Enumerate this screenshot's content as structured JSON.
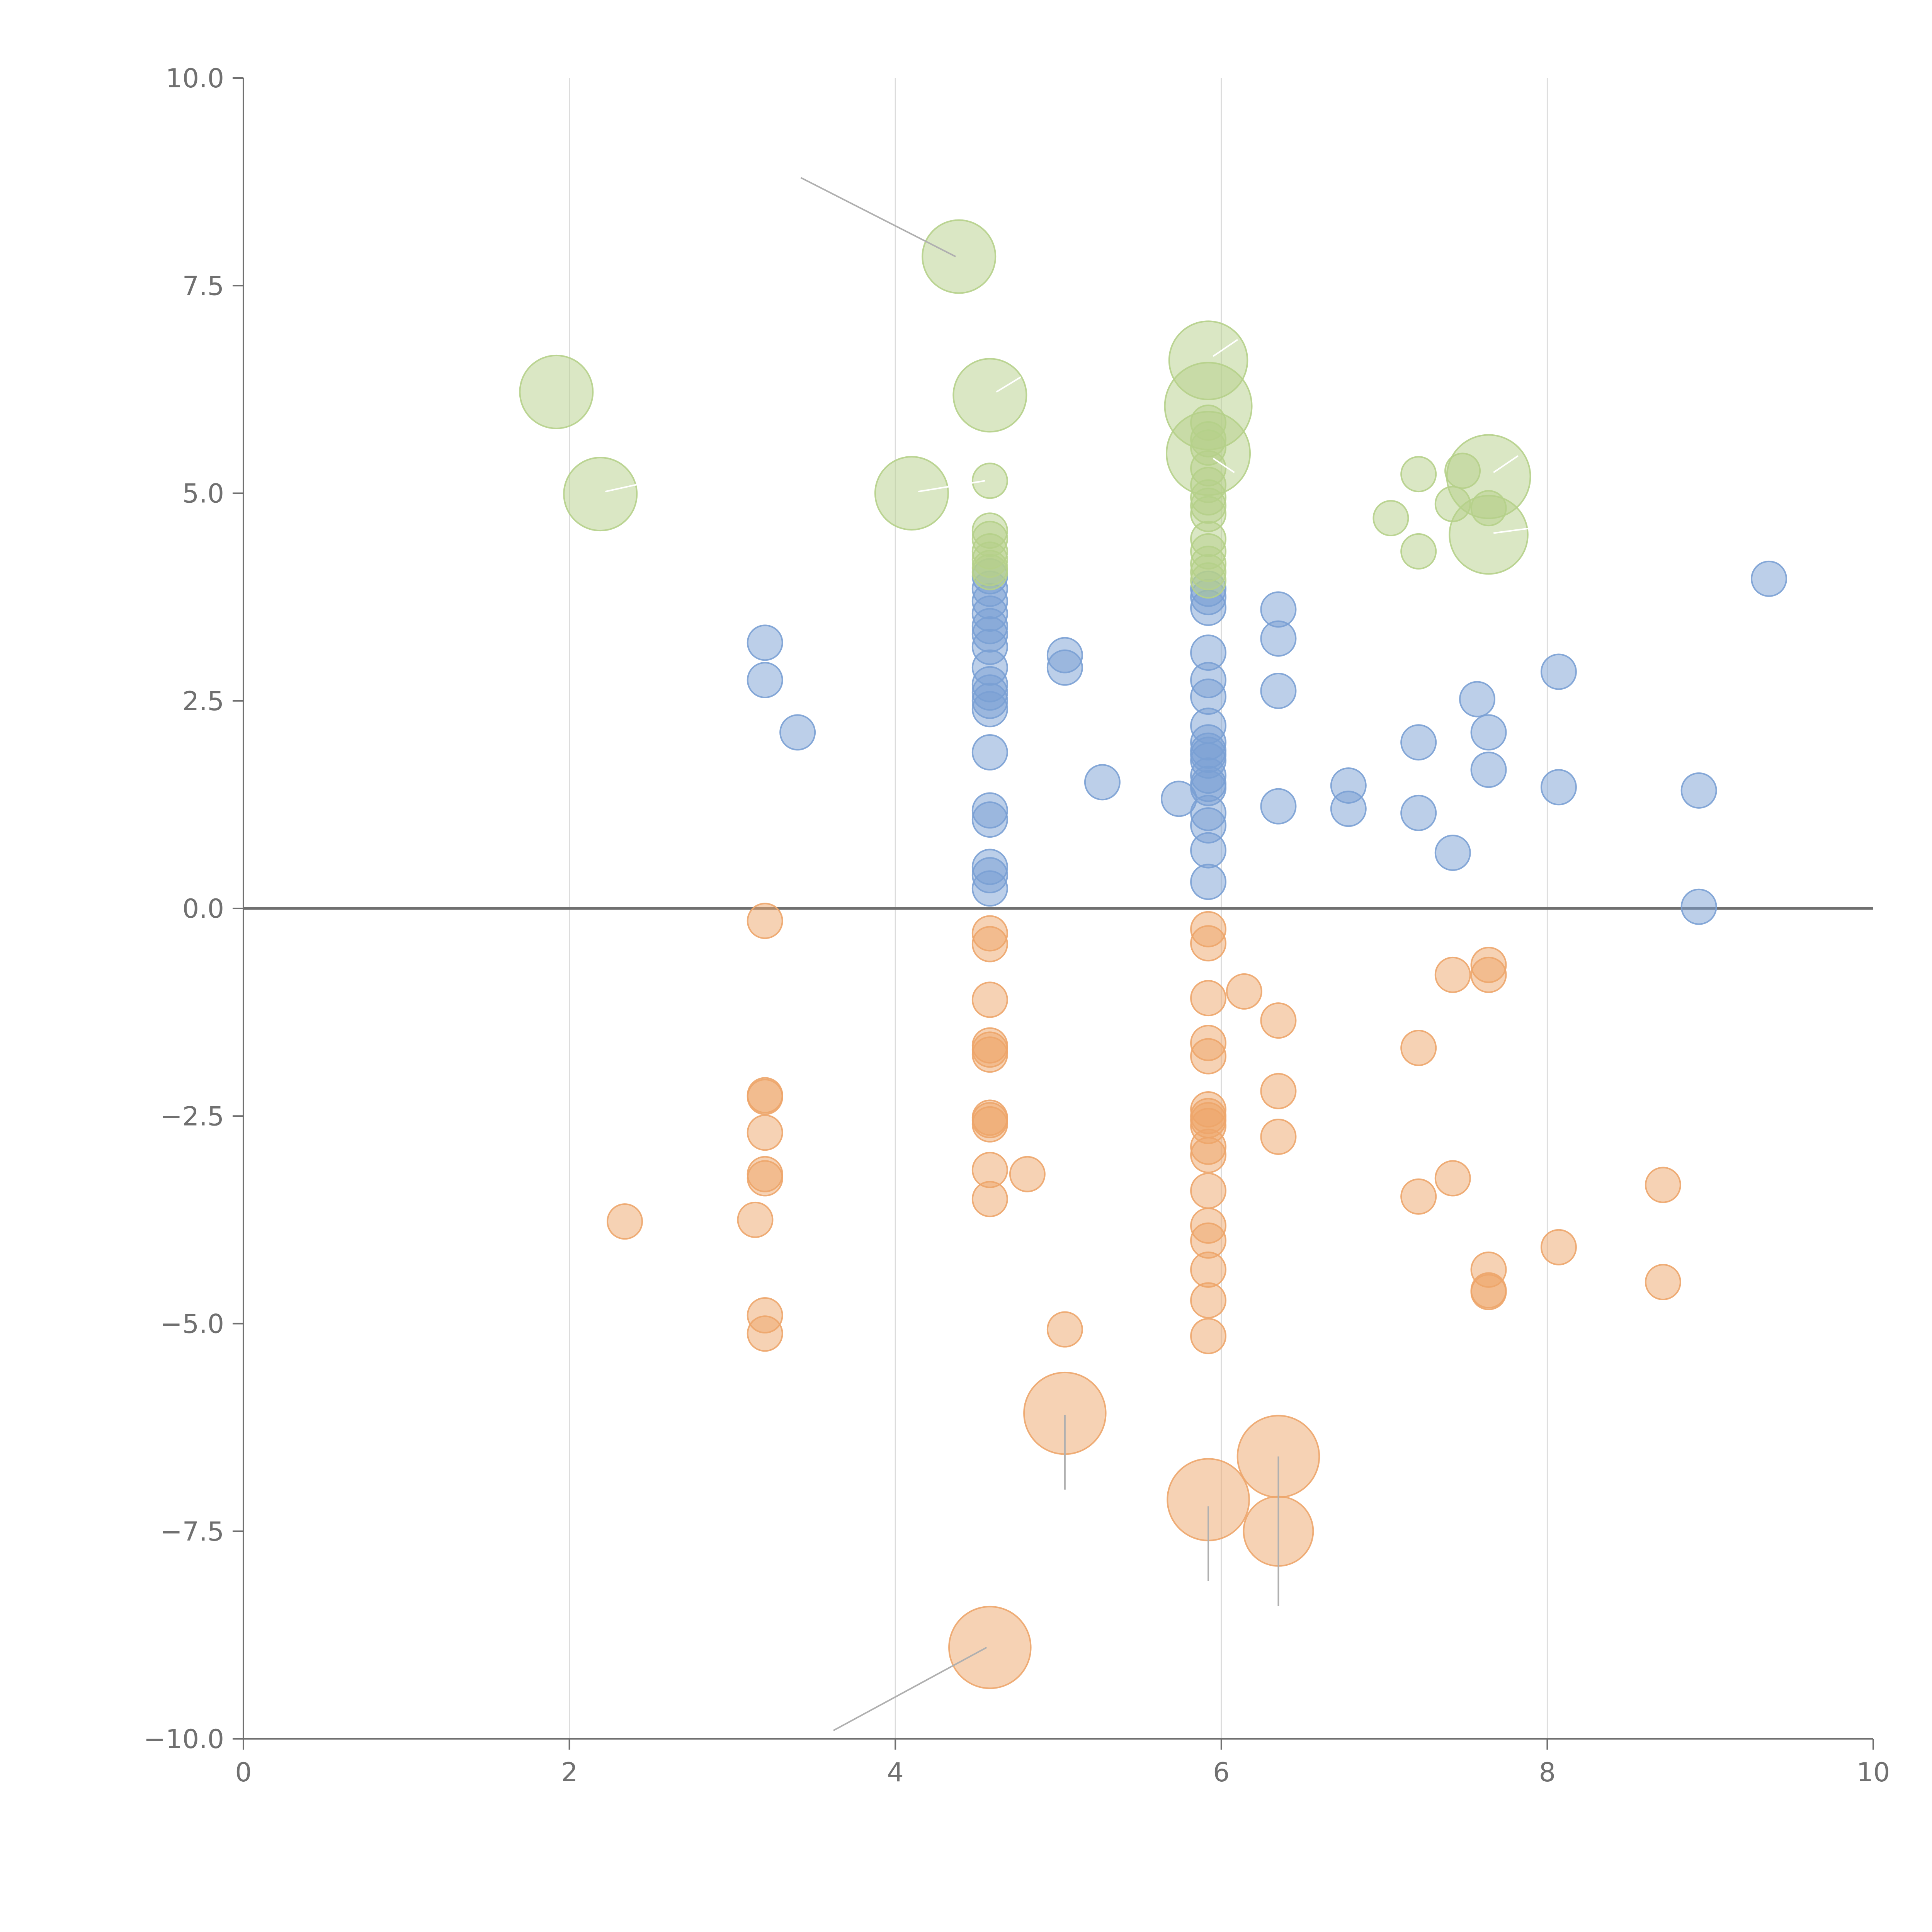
{
  "chart_data": {
    "type": "scatter",
    "title": "",
    "xlabel": "",
    "ylabel": "",
    "xlim": [
      0,
      10
    ],
    "ylim": [
      -10,
      10
    ],
    "x_ticks": [
      0,
      2,
      4,
      6,
      8,
      10
    ],
    "y_ticks": [
      -10,
      -7.5,
      -5,
      -2.5,
      0,
      2.5,
      5,
      7.5,
      10
    ],
    "x_tick_labels": [
      "0",
      "2",
      "4",
      "6",
      "8",
      "10"
    ],
    "y_tick_labels": [
      "−10.0",
      "−7.5",
      "−5.0",
      "−2.5",
      "0.0",
      "2.5",
      "5.0",
      "7.5",
      "10.0"
    ],
    "grid": "vertical",
    "colors": {
      "positive": "#7aa0d4",
      "negative": "#eda56a",
      "top": "#b5d08a"
    },
    "series": [
      {
        "name": "positive",
        "color": "#7aa0d4",
        "x": [
          3.2,
          3.2,
          3.4,
          4.58,
          4.58,
          4.58,
          4.58,
          4.58,
          4.58,
          4.58,
          4.58,
          4.58,
          4.58,
          4.58,
          4.58,
          4.58,
          4.58,
          4.58,
          4.58,
          4.58,
          4.58,
          5.04,
          5.04,
          5.27,
          5.74,
          5.92,
          5.92,
          5.92,
          5.92,
          5.92,
          5.92,
          5.92,
          5.92,
          5.92,
          5.92,
          5.92,
          5.92,
          5.92,
          5.92,
          5.92,
          5.92,
          5.92,
          5.92,
          6.35,
          6.35,
          6.35,
          6.35,
          6.78,
          6.78,
          7.21,
          7.21,
          7.42,
          7.57,
          7.64,
          7.64,
          8.07,
          8.07,
          8.93,
          8.93,
          9.36
        ],
        "y": [
          3.2,
          2.75,
          2.12,
          4.0,
          3.85,
          3.7,
          3.55,
          3.4,
          3.3,
          3.15,
          2.9,
          2.7,
          2.6,
          2.5,
          2.4,
          1.88,
          1.18,
          1.07,
          0.5,
          0.4,
          0.24,
          3.05,
          2.9,
          1.52,
          1.32,
          3.85,
          3.75,
          3.62,
          3.08,
          2.75,
          2.55,
          2.2,
          2.0,
          1.85,
          1.78,
          1.5,
          1.15,
          1.0,
          0.7,
          0.32,
          1.9,
          1.6,
          1.45,
          3.6,
          3.25,
          2.62,
          1.23,
          1.48,
          1.2,
          2.0,
          1.15,
          0.67,
          2.52,
          2.12,
          1.67,
          2.85,
          1.46,
          1.42,
          0.02,
          3.97
        ],
        "size": [
          1,
          1,
          1,
          1,
          1,
          1,
          1,
          1,
          1,
          1,
          1,
          1,
          1,
          1,
          1,
          1,
          1,
          1,
          1,
          1,
          1,
          1,
          1,
          1,
          1,
          1,
          1,
          1,
          1,
          1,
          1,
          1,
          1,
          1,
          1,
          1,
          1,
          1,
          1,
          1,
          1,
          1,
          1,
          1,
          1,
          1,
          1,
          1,
          1,
          1,
          1,
          1,
          1,
          1,
          1,
          1,
          1,
          1,
          1,
          1
        ]
      },
      {
        "name": "negative",
        "color": "#eda56a",
        "x": [
          2.34,
          3.14,
          3.2,
          3.2,
          3.2,
          3.2,
          3.2,
          3.2,
          3.2,
          3.2,
          4.58,
          4.58,
          4.58,
          4.58,
          4.58,
          4.58,
          4.58,
          4.58,
          4.58,
          4.58,
          4.58,
          4.81,
          5.04,
          5.92,
          5.92,
          5.92,
          5.92,
          5.92,
          5.92,
          5.92,
          5.92,
          5.92,
          5.92,
          5.92,
          5.92,
          5.92,
          5.92,
          5.92,
          5.92,
          5.92,
          6.14,
          6.35,
          6.35,
          6.35,
          7.21,
          7.21,
          7.42,
          7.42,
          7.64,
          7.64,
          7.64,
          7.64,
          7.64,
          8.07,
          8.71,
          8.71,
          5.04,
          5.92,
          6.35,
          6.35,
          4.58
        ],
        "y": [
          -3.77,
          -3.75,
          -0.15,
          -2.25,
          -2.27,
          -2.7,
          -3.2,
          -3.25,
          -4.9,
          -5.12,
          -0.3,
          -0.43,
          -1.1,
          -1.7,
          -1.76,
          -2.52,
          -2.6,
          -3.15,
          -3.5,
          -2.55,
          -1.65,
          -3.2,
          -5.07,
          -0.25,
          -0.42,
          -1.08,
          -1.62,
          -1.78,
          -2.42,
          -2.55,
          -2.62,
          -2.87,
          -2.97,
          -3.4,
          -3.82,
          -4.0,
          -4.35,
          -4.72,
          -5.15,
          -2.5,
          -1.0,
          -1.35,
          -2.2,
          -2.75,
          -1.68,
          -3.47,
          -0.8,
          -3.25,
          -0.68,
          -0.8,
          -4.35,
          -4.6,
          -4.62,
          -4.08,
          -3.33,
          -4.5,
          -6.08,
          -7.12,
          -6.6,
          -7.5,
          -8.9
        ],
        "size": [
          1,
          1,
          1,
          1,
          1,
          1,
          1,
          1,
          1,
          1,
          1,
          1,
          1,
          1,
          1,
          1,
          1,
          1,
          1,
          1,
          1,
          1,
          1,
          1,
          1,
          1,
          1,
          1,
          1,
          1,
          1,
          1,
          1,
          1,
          1,
          1,
          1,
          1,
          1,
          1,
          1,
          1,
          1,
          1,
          1,
          1,
          1,
          1,
          1,
          1,
          1,
          1,
          1,
          1,
          1,
          1,
          2.35,
          2.35,
          2.35,
          2.0,
          2.35
        ]
      },
      {
        "name": "top",
        "color": "#b5d08a",
        "x": [
          1.92,
          2.19,
          4.1,
          4.39,
          4.58,
          4.58,
          4.58,
          4.58,
          4.58,
          4.58,
          4.58,
          4.58,
          5.92,
          5.92,
          5.92,
          5.92,
          5.92,
          5.92,
          5.92,
          5.92,
          5.92,
          5.92,
          5.92,
          5.92,
          5.92,
          5.92,
          5.92,
          7.04,
          7.21,
          7.21,
          7.42,
          7.48,
          7.64,
          7.64,
          7.64,
          5.92
        ],
        "y": [
          6.22,
          4.99,
          5.0,
          7.85,
          6.18,
          5.15,
          4.55,
          4.3,
          4.2,
          4.1,
          4.05,
          4.45,
          6.6,
          6.05,
          5.48,
          5.85,
          5.65,
          5.3,
          5.1,
          4.95,
          4.85,
          4.75,
          4.45,
          4.3,
          4.15,
          4.05,
          3.95,
          4.7,
          5.23,
          4.3,
          4.87,
          5.27,
          5.2,
          4.5,
          4.82,
          5.55
        ],
        "size": [
          2.1,
          2.1,
          2.1,
          2.1,
          2.1,
          1,
          1,
          1,
          1,
          1,
          1,
          1,
          2.25,
          2.5,
          2.4,
          1,
          1,
          1,
          1,
          1,
          1,
          1,
          1,
          1,
          1,
          1,
          1,
          1,
          1,
          1,
          1,
          1,
          2.4,
          2.25,
          1,
          1
        ]
      }
    ]
  }
}
